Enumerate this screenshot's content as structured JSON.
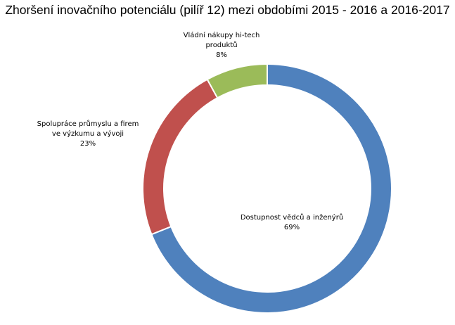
{
  "chart_data": {
    "type": "pie",
    "title": "Zhoršení inovačního potenciálu (pilíř 12) mezi obdobími 2015 - 2016 a 2016-2017",
    "donut": true,
    "legend": "none",
    "slices": [
      {
        "name_lines": [
          "Dostupnost vědců a inženýrů"
        ],
        "value": 69,
        "value_label": "69%",
        "color": "#4F81BD"
      },
      {
        "name_lines": [
          "Spolupráce průmyslu a firem",
          "ve výzkumu a vývoji"
        ],
        "value": 23,
        "value_label": "23%",
        "color": "#C0504D"
      },
      {
        "name_lines": [
          "Vládní nákupy hi-tech",
          "produktů"
        ],
        "value": 8,
        "value_label": "8%",
        "color": "#9BBB59"
      }
    ]
  }
}
